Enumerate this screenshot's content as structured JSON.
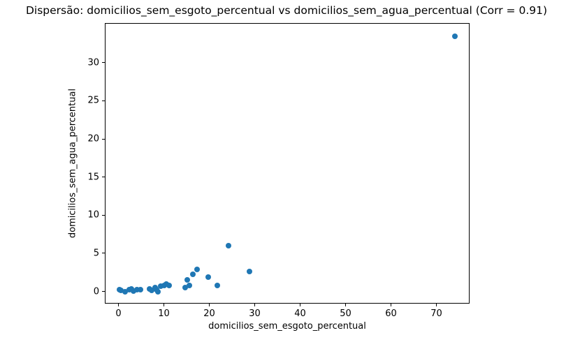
{
  "chart_data": {
    "type": "scatter",
    "title": "Dispersão: domicilios_sem_esgoto_percentual vs domicilios_sem_agua_percentual (Corr = 0.91)",
    "xlabel": "domicilios_sem_esgoto_percentual",
    "ylabel": "domicilios_sem_agua_percentual",
    "correlation": 0.91,
    "marker_color": "#1f77b4",
    "grid": false,
    "legend": "none",
    "xlim": [
      -3,
      77.3
    ],
    "ylim": [
      -1.6,
      35.2
    ],
    "xticks": [
      0,
      10,
      20,
      30,
      40,
      50,
      60,
      70
    ],
    "yticks": [
      0,
      5,
      10,
      15,
      20,
      25,
      30
    ],
    "points": [
      [
        0.2,
        0.2
      ],
      [
        0.6,
        0.1
      ],
      [
        1.5,
        0.0
      ],
      [
        2.4,
        0.2
      ],
      [
        2.9,
        0.35
      ],
      [
        3.3,
        0.05
      ],
      [
        4.1,
        0.25
      ],
      [
        4.8,
        0.2
      ],
      [
        6.9,
        0.35
      ],
      [
        7.3,
        0.1
      ],
      [
        8.1,
        0.55
      ],
      [
        8.4,
        0.25
      ],
      [
        8.7,
        0.0
      ],
      [
        9.3,
        0.65
      ],
      [
        10.0,
        0.8
      ],
      [
        10.5,
        0.95
      ],
      [
        11.1,
        0.8
      ],
      [
        14.7,
        0.5
      ],
      [
        15.2,
        1.5
      ],
      [
        15.6,
        0.8
      ],
      [
        16.4,
        2.2
      ],
      [
        17.3,
        2.9
      ],
      [
        19.8,
        1.9
      ],
      [
        21.8,
        0.8
      ],
      [
        24.3,
        6.0
      ],
      [
        28.8,
        2.6
      ],
      [
        74.0,
        33.5
      ]
    ]
  }
}
